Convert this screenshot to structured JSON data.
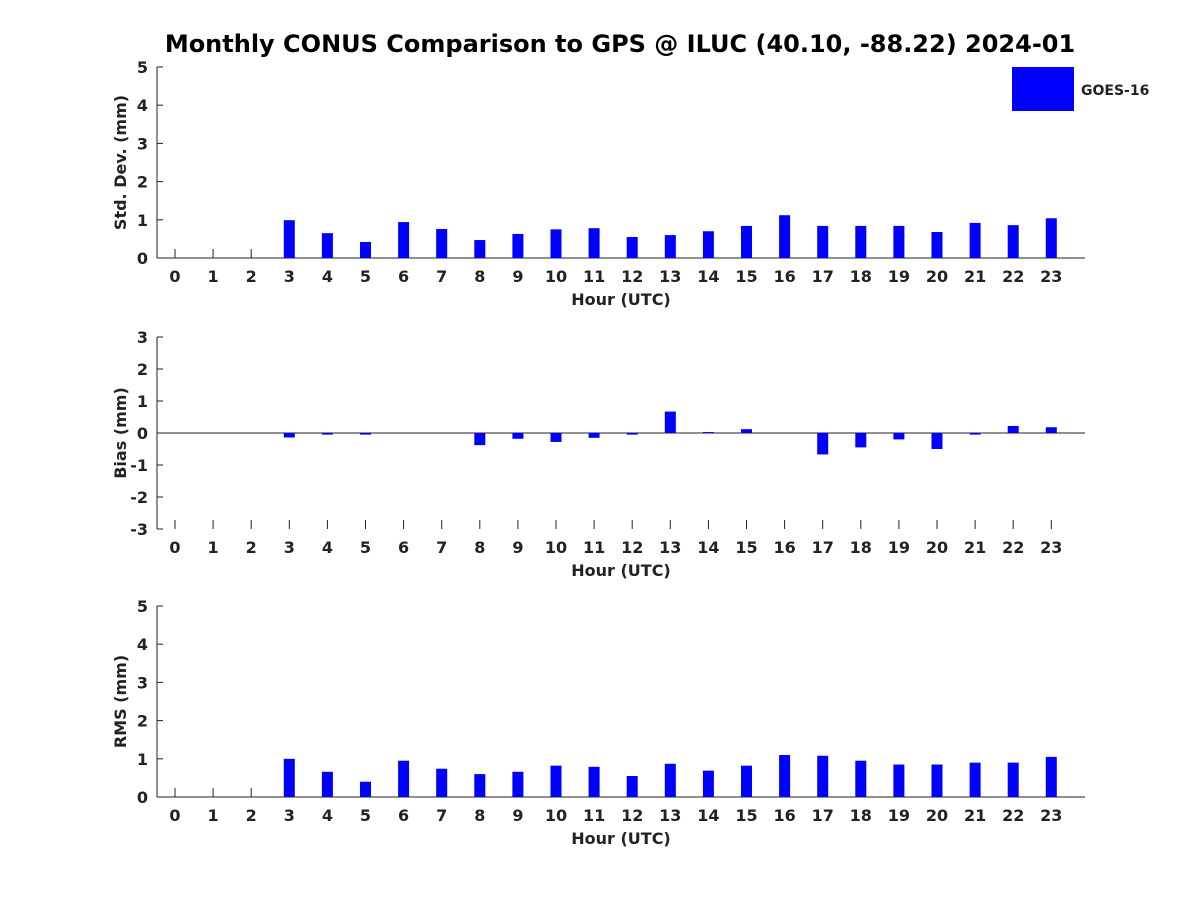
{
  "title": "Monthly CONUS Comparison to GPS @ ILUC (40.10, -88.22) 2024-01",
  "legend": {
    "label": "GOES-16",
    "color": "#0000ff",
    "position": "top-right"
  },
  "chart_data": [
    {
      "type": "bar",
      "ylabel": "Std. Dev. (mm)",
      "xlabel": "Hour (UTC)",
      "ylim": [
        0,
        5
      ],
      "yticks": [
        "0",
        "1",
        "2",
        "3",
        "4",
        "5"
      ],
      "categories": [
        "0",
        "1",
        "2",
        "3",
        "4",
        "5",
        "6",
        "7",
        "8",
        "9",
        "10",
        "11",
        "12",
        "13",
        "14",
        "15",
        "16",
        "17",
        "18",
        "19",
        "20",
        "21",
        "22",
        "23"
      ],
      "series": [
        {
          "name": "GOES-16",
          "values": [
            null,
            null,
            null,
            0.99,
            0.65,
            0.42,
            0.94,
            0.76,
            0.47,
            0.63,
            0.75,
            0.78,
            0.55,
            0.6,
            0.7,
            0.84,
            1.12,
            0.84,
            0.84,
            0.84,
            0.68,
            0.92,
            0.86,
            1.04
          ]
        }
      ]
    },
    {
      "type": "bar",
      "ylabel": "Bias (mm)",
      "xlabel": "Hour (UTC)",
      "ylim": [
        -3,
        3
      ],
      "yticks": [
        "-3",
        "-2",
        "-1",
        "0",
        "1",
        "2",
        "3"
      ],
      "categories": [
        "0",
        "1",
        "2",
        "3",
        "4",
        "5",
        "6",
        "7",
        "8",
        "9",
        "10",
        "11",
        "12",
        "13",
        "14",
        "15",
        "16",
        "17",
        "18",
        "19",
        "20",
        "21",
        "22",
        "23"
      ],
      "series": [
        {
          "name": "GOES-16",
          "values": [
            null,
            null,
            null,
            -0.14,
            -0.05,
            -0.05,
            0.0,
            0.0,
            -0.38,
            -0.18,
            -0.28,
            -0.15,
            -0.05,
            0.67,
            0.03,
            0.12,
            0.0,
            -0.67,
            -0.45,
            -0.2,
            -0.5,
            -0.05,
            0.22,
            0.18
          ]
        }
      ]
    },
    {
      "type": "bar",
      "ylabel": "RMS (mm)",
      "xlabel": "Hour (UTC)",
      "ylim": [
        0,
        5
      ],
      "yticks": [
        "0",
        "1",
        "2",
        "3",
        "4",
        "5"
      ],
      "categories": [
        "0",
        "1",
        "2",
        "3",
        "4",
        "5",
        "6",
        "7",
        "8",
        "9",
        "10",
        "11",
        "12",
        "13",
        "14",
        "15",
        "16",
        "17",
        "18",
        "19",
        "20",
        "21",
        "22",
        "23"
      ],
      "series": [
        {
          "name": "GOES-16",
          "values": [
            null,
            null,
            null,
            1.0,
            0.66,
            0.4,
            0.95,
            0.74,
            0.6,
            0.66,
            0.82,
            0.79,
            0.55,
            0.87,
            0.69,
            0.82,
            1.1,
            1.08,
            0.95,
            0.85,
            0.85,
            0.9,
            0.9,
            1.05
          ]
        }
      ]
    }
  ]
}
